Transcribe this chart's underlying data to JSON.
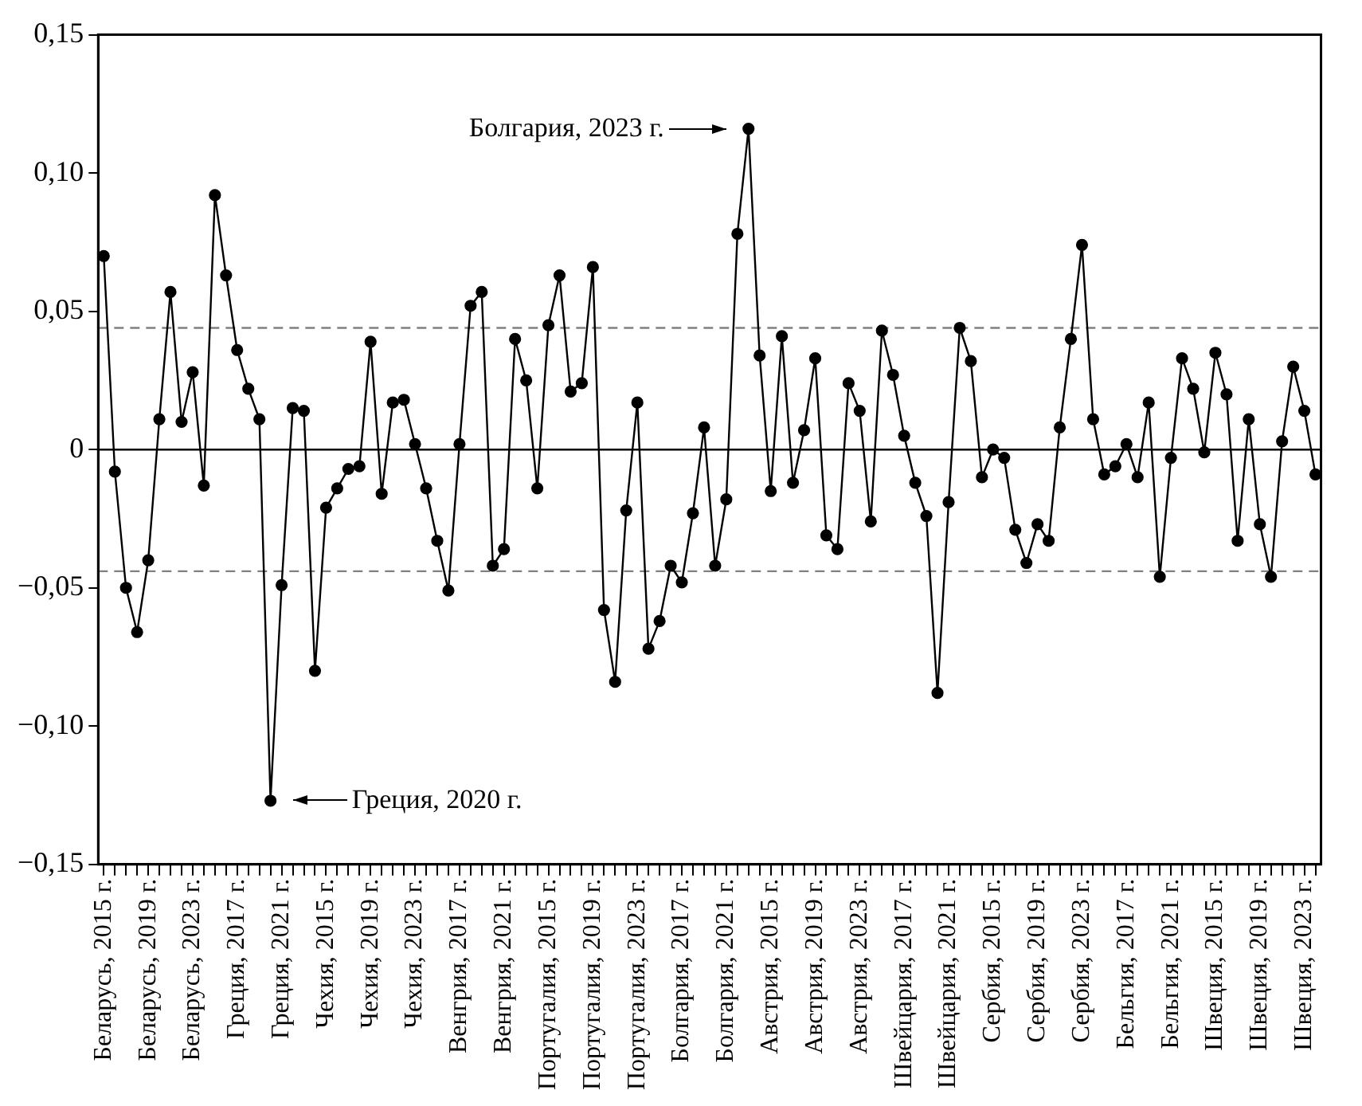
{
  "chart_data": {
    "type": "line",
    "categories": [
      "Беларусь, 2015 г.",
      null,
      null,
      null,
      "Беларусь, 2019 г.",
      null,
      null,
      null,
      "Беларусь, 2023 г.",
      null,
      null,
      null,
      "Греция, 2017 г.",
      null,
      null,
      null,
      "Греция, 2021 г.",
      null,
      null,
      null,
      "Чехия, 2015 г.",
      null,
      null,
      null,
      "Чехия, 2019 г.",
      null,
      null,
      null,
      "Чехия, 2023 г.",
      null,
      null,
      null,
      "Венгрия, 2017 г.",
      null,
      null,
      null,
      "Венгрия, 2021 г.",
      null,
      null,
      null,
      "Португалия, 2015 г.",
      null,
      null,
      null,
      "Португалия, 2019 г.",
      null,
      null,
      null,
      "Португалия, 2023 г.",
      null,
      null,
      null,
      "Болгария, 2017 г.",
      null,
      null,
      null,
      "Болгария, 2021 г.",
      null,
      null,
      null,
      "Австрия, 2015 г.",
      null,
      null,
      null,
      "Австрия, 2019 г.",
      null,
      null,
      null,
      "Австрия, 2023 г.",
      null,
      null,
      null,
      "Швейцария, 2017 г.",
      null,
      null,
      null,
      "Швейцария, 2021 г.",
      null,
      null,
      null,
      "Сербия, 2015 г.",
      null,
      null,
      null,
      "Сербия, 2019 г.",
      null,
      null,
      null,
      "Сербия, 2023 г.",
      null,
      null,
      null,
      "Бельгия, 2017 г.",
      null,
      null,
      null,
      "Бельгия, 2021 г.",
      null,
      null,
      null,
      "Швеция, 2015 г.",
      null,
      null,
      null,
      "Швеция, 2019 г.",
      null,
      null,
      null,
      "Швеция, 2023 г.",
      null
    ],
    "series": [
      {
        "color": "#000000",
        "values": [
          0.07,
          -0.008,
          -0.05,
          -0.066,
          -0.04,
          0.011,
          0.057,
          0.01,
          0.028,
          -0.013,
          0.092,
          0.063,
          0.036,
          0.022,
          0.011,
          -0.127,
          -0.049,
          0.015,
          0.014,
          -0.08,
          -0.021,
          -0.014,
          -0.007,
          -0.006,
          0.039,
          -0.016,
          0.017,
          0.018,
          0.002,
          -0.014,
          -0.033,
          -0.051,
          0.002,
          0.052,
          0.057,
          -0.042,
          -0.036,
          0.04,
          0.025,
          -0.014,
          0.045,
          0.063,
          0.021,
          0.024,
          0.066,
          -0.058,
          -0.084,
          -0.022,
          0.017,
          -0.072,
          -0.062,
          -0.042,
          -0.048,
          -0.023,
          0.008,
          -0.042,
          -0.018,
          0.078,
          0.116,
          0.034,
          -0.015,
          0.041,
          -0.012,
          0.007,
          0.033,
          -0.031,
          -0.036,
          0.024,
          0.014,
          -0.026,
          0.043,
          0.027,
          0.005,
          -0.012,
          -0.024,
          -0.088,
          -0.019,
          0.044,
          0.032,
          -0.01,
          0.0,
          -0.003,
          -0.029,
          -0.041,
          -0.027,
          -0.033,
          0.008,
          0.04,
          0.074,
          0.011,
          -0.009,
          -0.006,
          0.002,
          -0.01,
          0.017,
          -0.046,
          -0.003,
          0.033,
          0.022,
          -0.001,
          0.035,
          0.02,
          -0.033,
          0.011,
          -0.027,
          -0.046,
          0.003,
          0.03,
          0.014,
          -0.009
        ]
      }
    ],
    "ylim": [
      -0.15,
      0.15
    ],
    "yticks": [
      {
        "value": -0.15,
        "label": "−0,15"
      },
      {
        "value": -0.1,
        "label": "−0,10"
      },
      {
        "value": -0.05,
        "label": "−0,05"
      },
      0,
      {
        "value": 0.05,
        "label": "0,05"
      },
      {
        "value": 0.1,
        "label": "0,10"
      },
      {
        "value": 0.15,
        "label": "0,15"
      }
    ],
    "ref_lines": [
      {
        "axis": "y",
        "value": 0,
        "color": "#000000",
        "line_style": "solid"
      },
      {
        "axis": "y",
        "value": 0.044,
        "color": "#808080",
        "line_style": "dashed"
      },
      {
        "axis": "y",
        "value": -0.044,
        "color": "#808080",
        "line_style": "dashed"
      }
    ],
    "annotations": [
      "Греция, 2020 г.",
      "Болгария, 2023 г."
    ],
    "marker": "circle",
    "line_style": "solid",
    "grid": false,
    "legend": false
  }
}
